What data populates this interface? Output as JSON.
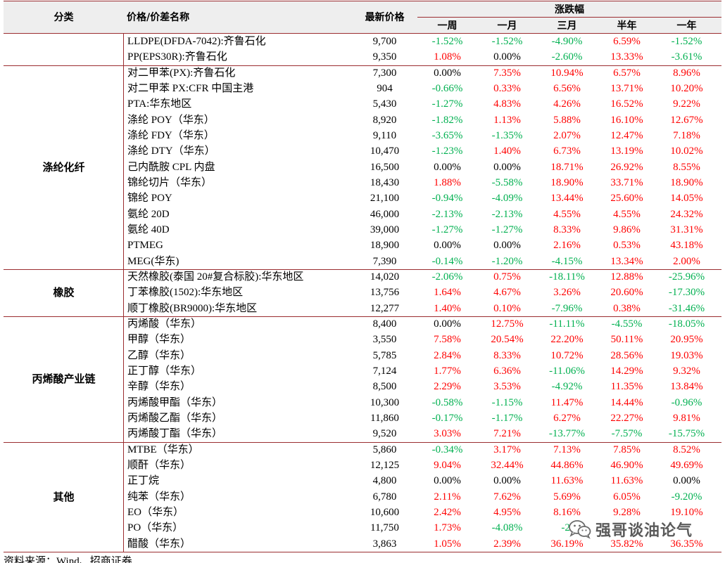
{
  "colors": {
    "up": "#ff0000",
    "down": "#00b050",
    "flat": "#000000",
    "rule": "#9b2d30",
    "header_bg": "#eeeeee"
  },
  "table": {
    "headers": {
      "category": "分类",
      "name": "价格/价差名称",
      "price": "最新价格",
      "change_group": "涨跌幅",
      "periods": [
        "一周",
        "一月",
        "三月",
        "半年",
        "一年"
      ]
    },
    "groups": [
      {
        "category": "",
        "rows": [
          {
            "name": "LLDPE(DFDA-7042):齐鲁石化",
            "price": "9,700",
            "changes": [
              "-1.52%",
              "-1.52%",
              "-4.90%",
              "6.59%",
              "-1.52%"
            ]
          },
          {
            "name": "PP(EPS30R):齐鲁石化",
            "price": "9,350",
            "changes": [
              "1.08%",
              "0.00%",
              "-2.60%",
              "13.33%",
              "-3.61%"
            ]
          }
        ]
      },
      {
        "category": "涤纶化纤",
        "rows": [
          {
            "name": "对二甲苯(PX):齐鲁石化",
            "price": "7,300",
            "changes": [
              "0.00%",
              "7.35%",
              "10.94%",
              "6.57%",
              "8.96%"
            ]
          },
          {
            "name": "对二甲苯 PX:CFR 中国主港",
            "price": "904",
            "changes": [
              "-0.66%",
              "0.33%",
              "6.56%",
              "13.71%",
              "10.20%"
            ]
          },
          {
            "name": "PTA:华东地区",
            "price": "5,430",
            "changes": [
              "-1.27%",
              "4.83%",
              "4.26%",
              "16.52%",
              "9.22%"
            ]
          },
          {
            "name": "涤纶 POY（华东）",
            "price": "8,920",
            "changes": [
              "-1.82%",
              "1.13%",
              "5.88%",
              "16.10%",
              "12.67%"
            ]
          },
          {
            "name": "涤纶 FDY（华东）",
            "price": "9,110",
            "changes": [
              "-3.65%",
              "-1.35%",
              "2.07%",
              "12.47%",
              "7.18%"
            ]
          },
          {
            "name": "涤纶 DTY（华东）",
            "price": "10,470",
            "changes": [
              "-1.23%",
              "1.40%",
              "6.73%",
              "13.19%",
              "10.02%"
            ]
          },
          {
            "name": "己内酰胺 CPL 内盘",
            "price": "16,500",
            "changes": [
              "0.00%",
              "0.00%",
              "18.71%",
              "26.92%",
              "8.55%"
            ]
          },
          {
            "name": "锦纶切片（华东）",
            "price": "18,430",
            "changes": [
              "1.88%",
              "-5.58%",
              "18.90%",
              "33.71%",
              "18.90%"
            ]
          },
          {
            "name": "锦纶 POY",
            "price": "21,100",
            "changes": [
              "-0.94%",
              "-4.09%",
              "13.44%",
              "25.60%",
              "14.05%"
            ]
          },
          {
            "name": "氨纶 20D",
            "price": "46,000",
            "changes": [
              "-2.13%",
              "-2.13%",
              "4.55%",
              "4.55%",
              "24.32%"
            ]
          },
          {
            "name": "氨纶 40D",
            "price": "39,000",
            "changes": [
              "-1.27%",
              "-1.27%",
              "8.33%",
              "9.86%",
              "31.31%"
            ]
          },
          {
            "name": "PTMEG",
            "price": "18,900",
            "changes": [
              "0.00%",
              "0.00%",
              "2.16%",
              "0.53%",
              "43.18%"
            ]
          },
          {
            "name": "MEG(华东)",
            "price": "7,390",
            "changes": [
              "-0.14%",
              "-1.20%",
              "-4.15%",
              "13.34%",
              "2.00%"
            ]
          }
        ]
      },
      {
        "category": "橡胶",
        "rows": [
          {
            "name": "天然橡胶(泰国 20#复合标胶):华东地区",
            "price": "14,020",
            "changes": [
              "-2.06%",
              "0.75%",
              "-18.11%",
              "12.88%",
              "-25.96%"
            ]
          },
          {
            "name": "丁苯橡胶(1502):华东地区",
            "price": "13,756",
            "changes": [
              "1.64%",
              "4.67%",
              "3.26%",
              "20.60%",
              "-17.30%"
            ]
          },
          {
            "name": "顺丁橡胶(BR9000):华东地区",
            "price": "12,277",
            "changes": [
              "1.40%",
              "0.10%",
              "-7.96%",
              "0.38%",
              "-31.46%"
            ]
          }
        ]
      },
      {
        "category": "丙烯酸产业链",
        "rows": [
          {
            "name": "丙烯酸（华东）",
            "price": "8,400",
            "changes": [
              "0.00%",
              "12.75%",
              "-11.11%",
              "-4.55%",
              "-18.05%"
            ]
          },
          {
            "name": "甲醇（华东）",
            "price": "3,550",
            "changes": [
              "7.58%",
              "20.54%",
              "22.20%",
              "50.11%",
              "20.95%"
            ]
          },
          {
            "name": "乙醇（华东）",
            "price": "5,785",
            "changes": [
              "2.84%",
              "8.33%",
              "10.72%",
              "28.56%",
              "19.03%"
            ]
          },
          {
            "name": "正丁醇（华东）",
            "price": "7,124",
            "changes": [
              "1.77%",
              "6.36%",
              "-11.06%",
              "14.29%",
              "9.32%"
            ]
          },
          {
            "name": "辛醇（华东）",
            "price": "8,500",
            "changes": [
              "2.29%",
              "3.53%",
              "-4.92%",
              "11.35%",
              "13.84%"
            ]
          },
          {
            "name": "丙烯酸甲酯（华东）",
            "price": "10,300",
            "changes": [
              "-0.58%",
              "-1.15%",
              "11.47%",
              "14.44%",
              "-0.96%"
            ]
          },
          {
            "name": "丙烯酸乙酯（华东）",
            "price": "11,860",
            "changes": [
              "-0.17%",
              "-1.17%",
              "6.27%",
              "22.27%",
              "9.81%"
            ]
          },
          {
            "name": "丙烯酸丁酯（华东）",
            "price": "9,520",
            "changes": [
              "3.03%",
              "7.21%",
              "-13.77%",
              "-7.57%",
              "-15.75%"
            ]
          }
        ]
      },
      {
        "category": "其他",
        "rows": [
          {
            "name": "MTBE（华东）",
            "price": "5,860",
            "changes": [
              "-0.34%",
              "3.17%",
              "7.13%",
              "7.85%",
              "8.52%"
            ]
          },
          {
            "name": "顺酐（华东）",
            "price": "12,125",
            "changes": [
              "9.04%",
              "32.44%",
              "44.86%",
              "46.90%",
              "49.69%"
            ]
          },
          {
            "name": "正丁烷",
            "price": "4,800",
            "changes": [
              "0.00%",
              "0.00%",
              "11.63%",
              "11.63%",
              "0.00%"
            ]
          },
          {
            "name": "纯苯（华东）",
            "price": "6,780",
            "changes": [
              "2.11%",
              "7.62%",
              "5.69%",
              "6.05%",
              "-9.20%"
            ]
          },
          {
            "name": "EO（华东）",
            "price": "10,600",
            "changes": [
              "2.42%",
              "4.95%",
              "8.16%",
              "9.28%",
              "19.10%"
            ]
          },
          {
            "name": "PO（华东）",
            "price": "11,750",
            "changes": [
              "1.73%",
              "-4.08%",
              "-2.",
              "",
              ""
            ]
          },
          {
            "name": "醋酸（华东）",
            "price": "3,863",
            "changes": [
              "1.05%",
              "2.39%",
              "36.19%",
              "35.82%",
              "36.35%"
            ]
          }
        ]
      }
    ]
  },
  "watermark": {
    "icon": "wechat-icon",
    "text": "强哥谈油论气"
  },
  "source": "资料来源：Wind、招商证券"
}
